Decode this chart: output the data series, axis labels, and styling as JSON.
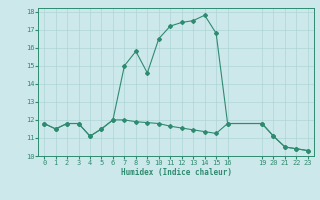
{
  "upper_x": [
    0,
    1,
    2,
    3,
    4,
    5,
    6,
    7,
    8,
    9,
    10,
    11,
    12,
    13,
    14,
    15,
    16,
    19,
    20,
    21,
    22,
    23
  ],
  "upper_y": [
    11.8,
    11.5,
    11.8,
    11.8,
    11.1,
    11.5,
    12.0,
    15.0,
    15.8,
    14.6,
    16.5,
    17.2,
    17.4,
    17.5,
    17.8,
    16.8,
    11.8,
    11.8,
    11.1,
    10.5,
    10.4,
    10.3
  ],
  "lower_x": [
    0,
    1,
    2,
    3,
    4,
    5,
    6,
    7,
    8,
    9,
    10,
    11,
    12,
    13,
    14,
    15,
    16,
    19,
    20,
    21,
    22,
    23
  ],
  "lower_y": [
    11.8,
    11.5,
    11.8,
    11.8,
    11.1,
    11.5,
    12.0,
    12.0,
    11.9,
    11.85,
    11.8,
    11.65,
    11.55,
    11.45,
    11.35,
    11.25,
    11.8,
    11.8,
    11.1,
    10.5,
    10.4,
    10.3
  ],
  "line_color": "#2e8b70",
  "bg_color": "#cde8ea",
  "grid_color": "#aed4d6",
  "xlabel": "Humidex (Indice chaleur)",
  "xlim": [
    -0.5,
    23.5
  ],
  "ylim": [
    10,
    18.2
  ],
  "xticks": [
    0,
    1,
    2,
    3,
    4,
    5,
    6,
    7,
    8,
    9,
    10,
    11,
    12,
    13,
    14,
    15,
    16,
    19,
    20,
    21,
    22,
    23
  ],
  "yticks": [
    10,
    11,
    12,
    13,
    14,
    15,
    16,
    17,
    18
  ],
  "markersize": 2.0,
  "linewidth": 0.8,
  "tick_fontsize": 5.0,
  "xlabel_fontsize": 5.5
}
